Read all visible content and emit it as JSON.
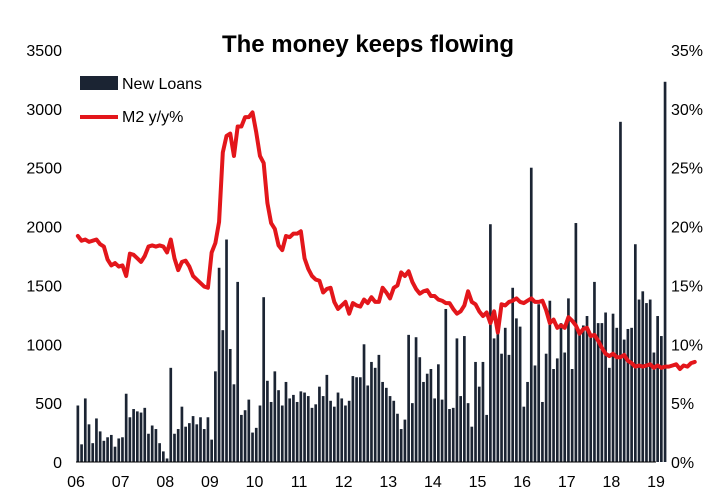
{
  "chart_data": {
    "type": "bar+line",
    "title": "The money keeps flowing",
    "xlabel": "",
    "ylabel": "",
    "x_tick_labels": [
      "06",
      "07",
      "08",
      "09",
      "10",
      "11",
      "12",
      "13",
      "14",
      "15",
      "16",
      "17",
      "18",
      "19"
    ],
    "y_left": {
      "lim": [
        0,
        3500
      ],
      "ticks": [
        0,
        500,
        1000,
        1500,
        2000,
        2500,
        3000,
        3500
      ]
    },
    "y_right": {
      "lim": [
        0,
        35
      ],
      "ticks": [
        "0%",
        "5%",
        "10%",
        "15%",
        "20%",
        "25%",
        "30%",
        "35%"
      ],
      "unit": "%"
    },
    "legend": {
      "placement": "top-left",
      "entries": [
        "New Loans",
        "M2 y/y%"
      ]
    },
    "grid": false,
    "series": [
      {
        "name": "New Loans",
        "type": "bar",
        "axis": "left",
        "color": "#1b2433",
        "x_start": 2006.0,
        "step_years": 0.0833,
        "values": [
          480,
          150,
          540,
          320,
          160,
          370,
          260,
          180,
          210,
          230,
          130,
          200,
          210,
          580,
          380,
          450,
          430,
          420,
          460,
          240,
          310,
          280,
          160,
          90,
          30,
          800,
          240,
          280,
          470,
          300,
          330,
          390,
          320,
          380,
          280,
          380,
          190,
          770,
          1650,
          1120,
          1890,
          960,
          660,
          1530,
          400,
          440,
          530,
          250,
          290,
          480,
          1400,
          690,
          510,
          770,
          610,
          480,
          680,
          540,
          570,
          510,
          600,
          590,
          560,
          460,
          490,
          640,
          560,
          740,
          520,
          470,
          590,
          540,
          480,
          520,
          730,
          720,
          720,
          1000,
          650,
          850,
          800,
          910,
          680,
          630,
          560,
          520,
          410,
          280,
          360,
          1080,
          500,
          1060,
          890,
          680,
          750,
          790,
          540,
          830,
          530,
          1300,
          450,
          460,
          1050,
          560,
          1070,
          500,
          300,
          850,
          640,
          850,
          400,
          2020,
          1050,
          1170,
          920,
          1140,
          910,
          1480,
          1220,
          1150,
          470,
          680,
          2500,
          820,
          1340,
          510,
          920,
          1370,
          790,
          880,
          1180,
          930,
          1390,
          790,
          2030,
          1110,
          1160,
          1240,
          1070,
          1530,
          1180,
          1180,
          1270,
          800,
          1260,
          1140,
          2890,
          1040,
          1130,
          1140,
          1850,
          1380,
          1450,
          1350,
          1380,
          930,
          1240,
          1070,
          3230
        ]
      },
      {
        "name": "M2 y/y%",
        "type": "line",
        "axis": "right",
        "color": "#e3161b",
        "x_start": 2006.0,
        "step_years": 0.0833,
        "values": [
          19.2,
          18.8,
          18.9,
          18.7,
          18.8,
          18.9,
          18.5,
          18.3,
          17.2,
          16.7,
          16.9,
          16.6,
          16.7,
          15.8,
          17.7,
          17.6,
          17.3,
          17.0,
          17.5,
          18.3,
          18.4,
          18.3,
          18.4,
          18.3,
          17.8,
          18.9,
          17.3,
          16.3,
          17.0,
          17.1,
          16.6,
          15.8,
          15.5,
          15.2,
          14.9,
          14.8,
          17.8,
          18.6,
          20.4,
          26.3,
          27.7,
          27.9,
          26.0,
          28.5,
          28.5,
          29.3,
          29.3,
          29.7,
          28.0,
          26.0,
          25.4,
          22.0,
          20.3,
          19.8,
          18.4,
          18.0,
          19.2,
          19.1,
          19.4,
          19.4,
          19.6,
          17.3,
          16.4,
          15.8,
          15.5,
          15.4,
          14.4,
          14.7,
          14.8,
          13.6,
          13.0,
          13.3,
          13.6,
          12.6,
          13.5,
          13.3,
          13.2,
          13.8,
          13.5,
          14.0,
          13.6,
          13.6,
          14.8,
          14.4,
          13.9,
          14.8,
          15.0,
          16.1,
          15.8,
          16.2,
          15.3,
          14.7,
          14.3,
          14.5,
          14.6,
          14.1,
          14.1,
          13.8,
          13.7,
          13.5,
          13.5,
          13.0,
          12.6,
          12.8,
          13.3,
          14.5,
          13.6,
          13.4,
          12.8,
          12.4,
          12.7,
          11.8,
          12.8,
          11.0,
          13.4,
          13.3,
          13.6,
          13.7,
          13.9,
          13.6,
          13.5,
          13.7,
          13.9,
          13.6,
          13.6,
          13.7,
          12.9,
          11.8,
          12.1,
          11.4,
          11.6,
          11.4,
          12.3,
          12.0,
          11.6,
          10.9,
          11.3,
          11.4,
          10.7,
          10.8,
          10.3,
          9.7,
          9.2,
          9.0,
          9.2,
          8.9,
          8.9,
          9.1,
          8.6,
          8.4,
          8.1,
          8.2,
          8.1,
          8.2,
          8.3,
          8.0,
          8.2,
          8.0,
          8.1,
          8.1,
          8.2,
          8.3,
          7.9,
          8.2,
          8.1,
          8.4,
          8.5
        ]
      }
    ]
  }
}
